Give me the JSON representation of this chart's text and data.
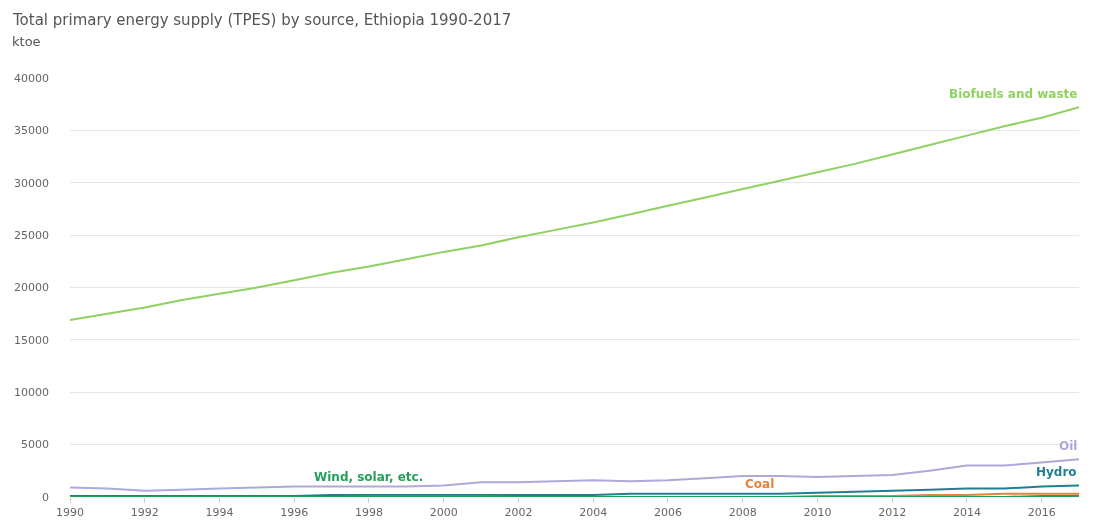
{
  "chart_data": {
    "type": "line",
    "title": "Total primary energy supply (TPES) by source, Ethiopia 1990-2017",
    "subtitle": "ktoe",
    "x": [
      1990,
      1991,
      1992,
      1993,
      1994,
      1995,
      1996,
      1997,
      1998,
      1999,
      2000,
      2001,
      2002,
      2003,
      2004,
      2005,
      2006,
      2007,
      2008,
      2009,
      2010,
      2011,
      2012,
      2013,
      2014,
      2015,
      2016,
      2017
    ],
    "series": [
      {
        "name": "Biofuels and waste",
        "color": "#8fd163",
        "values": [
          16900,
          17500,
          18100,
          18800,
          19400,
          20000,
          20700,
          21400,
          22000,
          22700,
          23400,
          24000,
          24800,
          25500,
          26200,
          27000,
          27800,
          28600,
          29400,
          30200,
          31000,
          31800,
          32700,
          33600,
          34500,
          35400,
          36200,
          37200
        ]
      },
      {
        "name": "Oil",
        "color": "#b3a6d9",
        "values": [
          900,
          800,
          600,
          700,
          800,
          900,
          1000,
          1000,
          1000,
          1000,
          1100,
          1400,
          1400,
          1500,
          1600,
          1500,
          1600,
          1800,
          2000,
          2000,
          1900,
          2000,
          2100,
          2500,
          3000,
          3000,
          3300,
          3600
        ]
      },
      {
        "name": "Hydro",
        "color": "#1f7f95",
        "values": [
          100,
          100,
          100,
          100,
          100,
          100,
          100,
          200,
          200,
          200,
          200,
          200,
          200,
          200,
          200,
          300,
          300,
          300,
          300,
          300,
          400,
          500,
          600,
          700,
          800,
          800,
          1000,
          1100
        ]
      },
      {
        "name": "Coal",
        "color": "#e8813a",
        "values": [
          null,
          null,
          null,
          null,
          null,
          null,
          null,
          null,
          null,
          null,
          null,
          null,
          null,
          null,
          null,
          null,
          null,
          null,
          0,
          0,
          100,
          100,
          100,
          200,
          200,
          300,
          300,
          300
        ]
      },
      {
        "name": "Wind, solar, etc.",
        "color": "#22a05a",
        "values": [
          0,
          0,
          0,
          0,
          0,
          0,
          0,
          0,
          100,
          100,
          100,
          100,
          0,
          0,
          0,
          0,
          0,
          0,
          0,
          0,
          0,
          0,
          0,
          0,
          0,
          0,
          100,
          100
        ]
      }
    ],
    "xlim": [
      1990,
      2017
    ],
    "xticks": [
      1990,
      1992,
      1994,
      1996,
      1998,
      2000,
      2002,
      2004,
      2006,
      2008,
      2010,
      2012,
      2014,
      2016
    ],
    "ylim": [
      0,
      40000
    ],
    "yticks": [
      0,
      5000,
      10000,
      15000,
      20000,
      25000,
      30000,
      35000,
      40000
    ],
    "grid": "y",
    "legend": false,
    "marker": "none",
    "line_style": "solid"
  }
}
